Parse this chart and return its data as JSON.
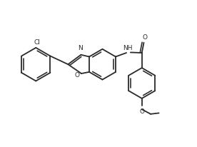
{
  "bg_color": "#ffffff",
  "line_color": "#2a2a2a",
  "line_width": 1.3,
  "font_size": 6.5,
  "figsize": [
    2.76,
    2.07
  ],
  "dpi": 100,
  "xlim": [
    0,
    10
  ],
  "ylim": [
    0,
    7.5
  ]
}
